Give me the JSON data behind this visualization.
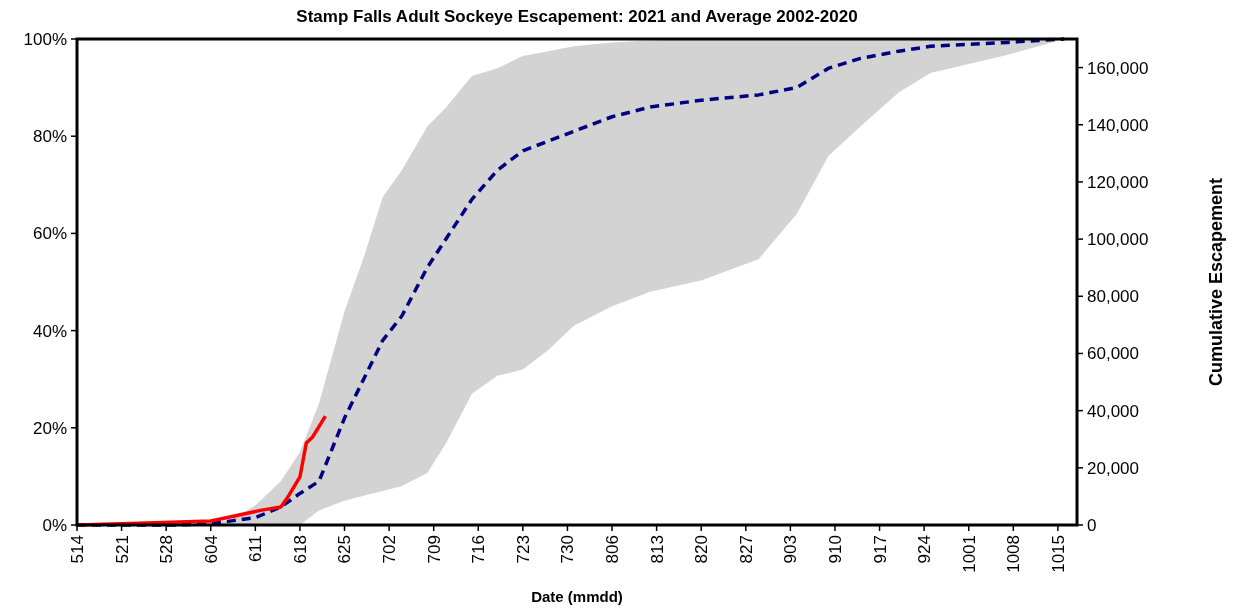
{
  "chart_data": {
    "type": "line",
    "title": "Stamp Falls Adult Sockeye Escapement: 2021 and Average 2002-2020",
    "xlabel": "Date (mmdd)",
    "y2label": "Cumulative Escapement",
    "x": [
      "--05-14",
      "--05-30",
      "--06-04",
      "--06-07",
      "--06-11",
      "--06-15",
      "--06-18",
      "--06-21",
      "--06-25",
      "--06-28",
      "--07-01",
      "--07-04",
      "--07-08",
      "--07-11",
      "--07-15",
      "--07-19",
      "--07-23",
      "--07-27",
      "--07-31",
      "--08-06",
      "--08-12",
      "--08-20",
      "--08-29",
      "--09-04",
      "--09-09",
      "--09-14",
      "--09-20",
      "--09-25",
      "--10-07",
      "--10-16"
    ],
    "series": [
      {
        "color": "#000080",
        "line_style": "dashed",
        "values": [
          0,
          0,
          0.3,
          0.8,
          1.5,
          3.7,
          6.5,
          9,
          22,
          30,
          38,
          43,
          53,
          59,
          67,
          73,
          77,
          79,
          81,
          84,
          86,
          87.4,
          88.5,
          90,
          94,
          96,
          97.5,
          98.5,
          99.3,
          100
        ],
        "lower": [
          0,
          0,
          0,
          0,
          0,
          0,
          0,
          3,
          5,
          6,
          7,
          8,
          10.7,
          17,
          27,
          30.7,
          32,
          36,
          41,
          45,
          48,
          50.3,
          54.7,
          64,
          76,
          82,
          89,
          93,
          96.7,
          100
        ],
        "upper": [
          0,
          0,
          0.5,
          1,
          4,
          9,
          15,
          25,
          44,
          55,
          67.5,
          73,
          82,
          86,
          92.4,
          94,
          96.5,
          97.5,
          98.5,
          99.3,
          99.7,
          100,
          100,
          100,
          100,
          100,
          100,
          100,
          100,
          100
        ]
      },
      {
        "color": "#ff0000",
        "axis": "y2",
        "x": [
          "--05-14",
          "--05-25",
          "--06-04",
          "--06-07",
          "--06-12",
          "--06-15",
          "--06-16",
          "--06-18",
          "--06-19",
          "--06-20",
          "--06-22"
        ],
        "values": [
          0,
          700,
          1400,
          2800,
          5200,
          6300,
          9400,
          16800,
          28700,
          30800,
          38100
        ]
      }
    ],
    "xlim": [
      "--05-14",
      "--10-18"
    ],
    "xticks": [
      {
        "value": "--05-14",
        "label": "514"
      },
      {
        "value": "--05-21",
        "label": "521"
      },
      {
        "value": "--05-28",
        "label": "528"
      },
      {
        "value": "--06-04",
        "label": "604"
      },
      {
        "value": "--06-11",
        "label": "611"
      },
      {
        "value": "--06-18",
        "label": "618"
      },
      {
        "value": "--06-25",
        "label": "625"
      },
      {
        "value": "--07-02",
        "label": "702"
      },
      {
        "value": "--07-09",
        "label": "709"
      },
      {
        "value": "--07-16",
        "label": "716"
      },
      {
        "value": "--07-23",
        "label": "723"
      },
      {
        "value": "--07-30",
        "label": "730"
      },
      {
        "value": "--08-06",
        "label": "806"
      },
      {
        "value": "--08-13",
        "label": "813"
      },
      {
        "value": "--08-20",
        "label": "820"
      },
      {
        "value": "--08-27",
        "label": "827"
      },
      {
        "value": "--09-03",
        "label": "903"
      },
      {
        "value": "--09-10",
        "label": "910"
      },
      {
        "value": "--09-17",
        "label": "917"
      },
      {
        "value": "--09-24",
        "label": "924"
      },
      {
        "value": "--10-01",
        "label": "1001"
      },
      {
        "value": "--10-08",
        "label": "1008"
      },
      {
        "value": "--10-15",
        "label": "1015"
      }
    ],
    "ylim": [
      0,
      100
    ],
    "yticks": [
      {
        "value": 0,
        "label": "0%"
      },
      {
        "value": 20,
        "label": "20%"
      },
      {
        "value": 40,
        "label": "40%"
      },
      {
        "value": 60,
        "label": "60%"
      },
      {
        "value": 80,
        "label": "80%"
      },
      {
        "value": 100,
        "label": "100%"
      }
    ],
    "y2lim": [
      0,
      170000
    ],
    "y2ticks": [
      0,
      {
        "value": 20000,
        "label": "20,000"
      },
      {
        "value": 40000,
        "label": "40,000"
      },
      {
        "value": 60000,
        "label": "60,000"
      },
      {
        "value": 80000,
        "label": "80,000"
      },
      {
        "value": 100000,
        "label": "100,000"
      },
      {
        "value": 120000,
        "label": "120,000"
      },
      {
        "value": 140000,
        "label": "140,000"
      },
      {
        "value": 160000,
        "label": "160,000"
      }
    ],
    "grid": false,
    "marker": "none"
  }
}
